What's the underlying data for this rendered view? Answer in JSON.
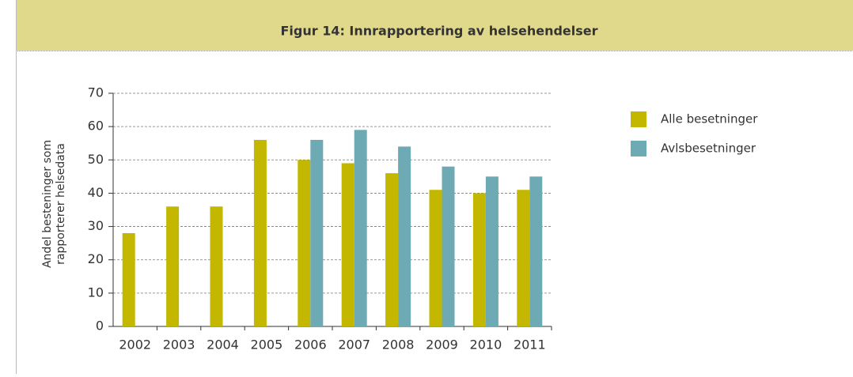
{
  "chart_data": {
    "type": "bar",
    "title": "Figur 14: Innrapportering av helsehendelser",
    "ylabel": [
      "Andel besteninger som",
      "rapporterer helsedata"
    ],
    "categories": [
      "2002",
      "2003",
      "2004",
      "2005",
      "2006",
      "2007",
      "2008",
      "2009",
      "2010",
      "2011"
    ],
    "series": [
      {
        "name": "Alle besetninger",
        "color": "#c3b700",
        "values": [
          28,
          36,
          36,
          56,
          50,
          49,
          46,
          41,
          40,
          41
        ]
      },
      {
        "name": "Avlsbesetninger",
        "color": "#6eaab3",
        "values": [
          null,
          null,
          null,
          null,
          56,
          59,
          54,
          48,
          45,
          45
        ]
      }
    ],
    "ylim": [
      0,
      70
    ],
    "yticks": [
      0,
      10,
      20,
      30,
      40,
      50,
      60,
      70
    ],
    "grid": true
  }
}
